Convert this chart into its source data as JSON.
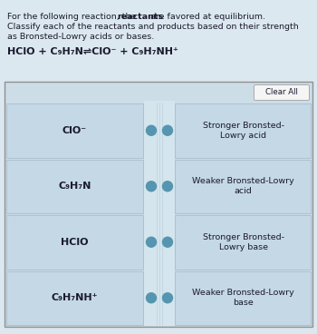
{
  "title_pre": "For the following reaction, the ",
  "title_bold": "reactants",
  "title_post": " are favored at equilibrium.",
  "title_line2": "Classify each of the reactants and products based on their strength",
  "title_line3": "as Bronsted-Lowry acids or bases.",
  "eq_text": "HClO + C₉H₇N⇌ClO⁻ + C₉H₇NH⁺",
  "left_items": [
    "ClO⁻",
    "C₉H₇N",
    "HClO",
    "C₉H₇NH⁺"
  ],
  "right_items": [
    "Stronger Bronsted-\nLowry acid",
    "Weaker Bronsted-Lowry\nacid",
    "Stronger Bronsted-\nLowry base",
    "Weaker Bronsted-Lowry\nbase"
  ],
  "clear_all_label": "Clear All",
  "outer_bg": "#dce8ef",
  "main_bg": "#ccdde8",
  "cell_bg": "#c5d8e5",
  "mid_stripe_bg": "#d4e5ee",
  "dot_color": "#5595b0",
  "text_color": "#1a1a2e",
  "clear_btn_bg": "#f5f5f5",
  "clear_btn_edge": "#aaaaaa",
  "main_border": "#909090",
  "cell_border": "#a0b8c8",
  "figsize": [
    3.5,
    3.68
  ],
  "dpi": 100
}
